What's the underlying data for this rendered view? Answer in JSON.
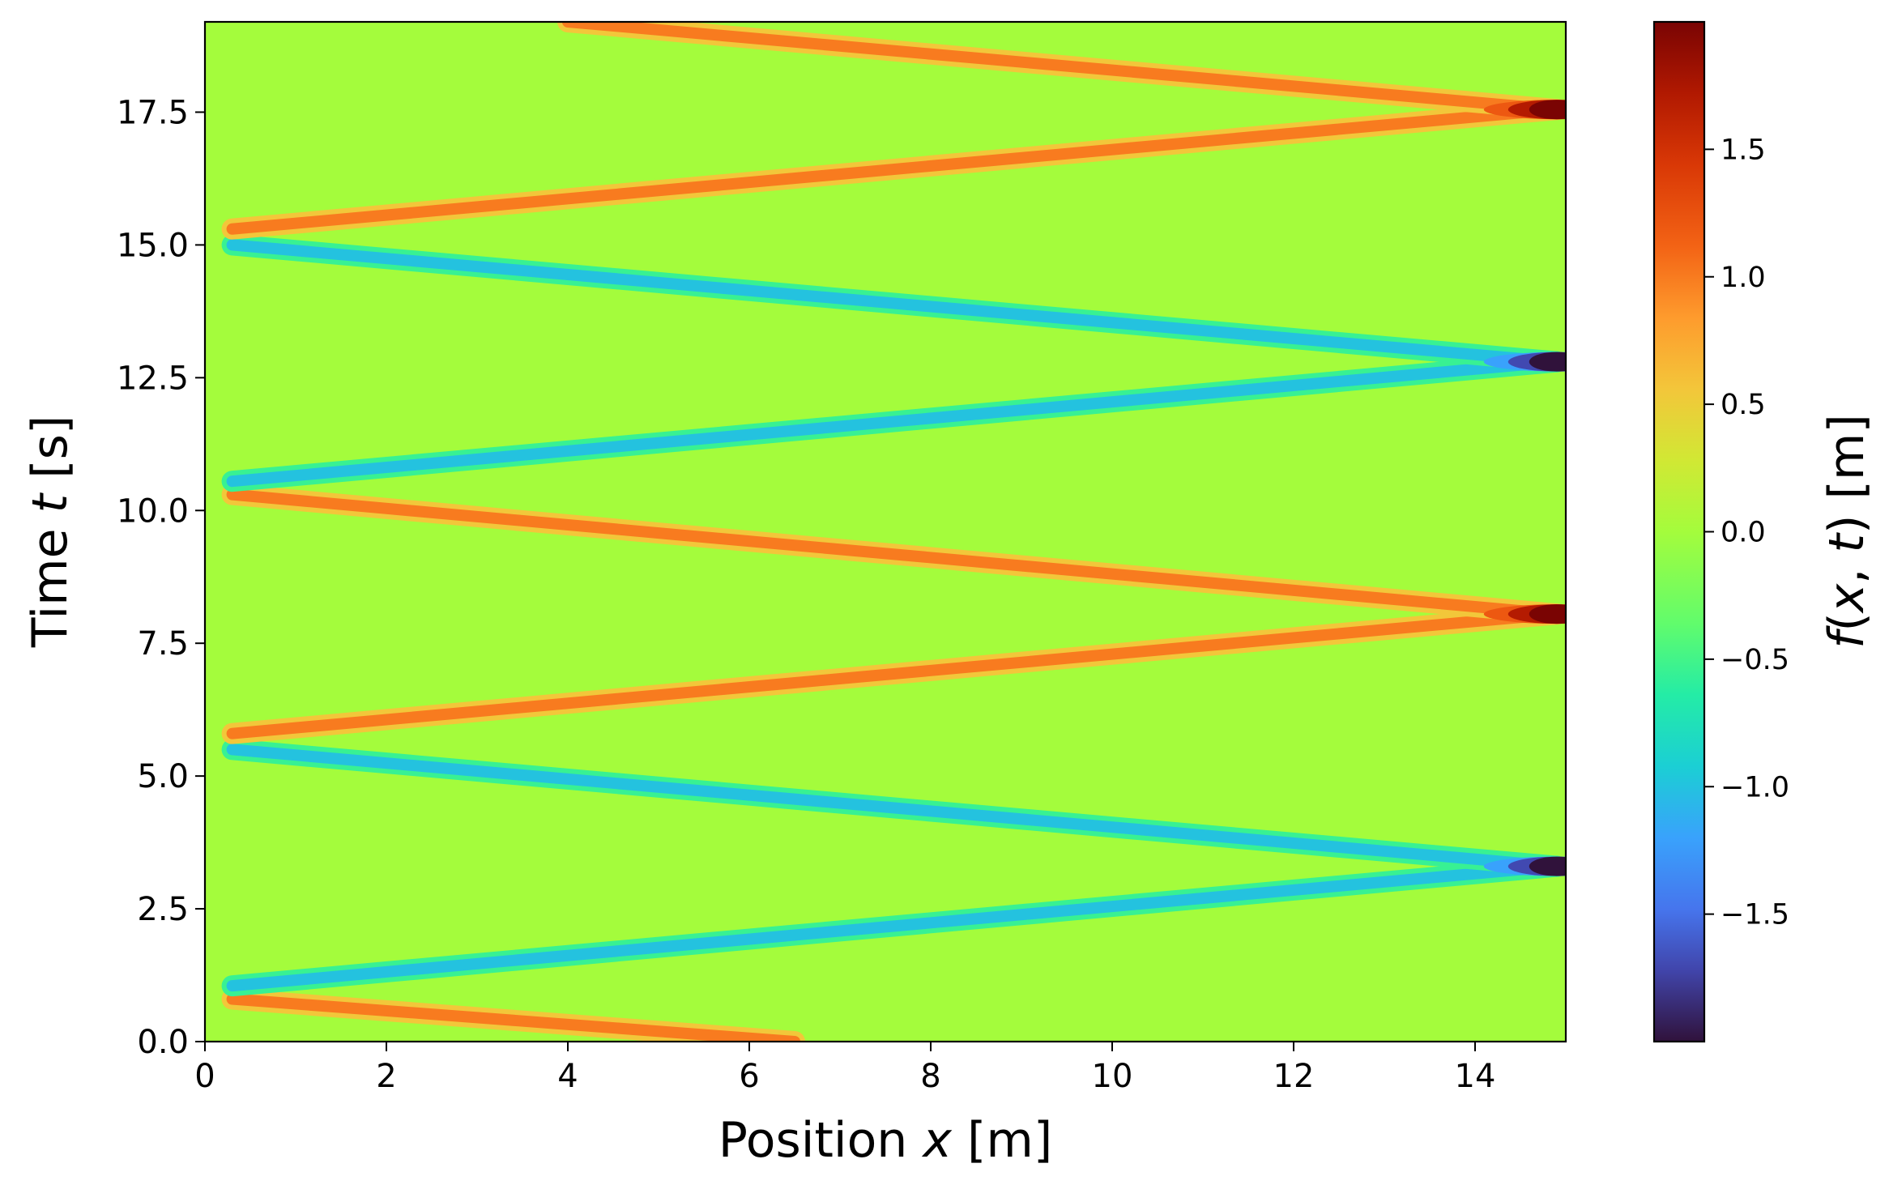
{
  "chart_data": {
    "type": "heatmap",
    "xlabel": {
      "prefix": "Position ",
      "var": "x",
      "suffix": " [m]"
    },
    "ylabel": {
      "prefix": "Time ",
      "var": "t",
      "suffix": " [s]"
    },
    "colorbar_label": {
      "var1": "f",
      "mid1": "(",
      "var2": "x",
      "mid2": ", ",
      "var3": "t",
      "suffix": ") [m]"
    },
    "xlim": [
      0,
      15
    ],
    "ylim": [
      0,
      19.2
    ],
    "clim": [
      -2,
      2
    ],
    "colormap": "turbo",
    "background_value": 0.0,
    "x_ticks": [
      0,
      2,
      4,
      6,
      8,
      10,
      12,
      14
    ],
    "x_tick_labels": [
      "0",
      "2",
      "4",
      "6",
      "8",
      "10",
      "12",
      "14"
    ],
    "y_ticks": [
      0,
      2.5,
      5,
      7.5,
      10,
      12.5,
      15,
      17.5
    ],
    "y_tick_labels": [
      "0.0",
      "2.5",
      "5.0",
      "7.5",
      "10.0",
      "12.5",
      "15.0",
      "17.5"
    ],
    "colorbar_ticks": [
      -1.5,
      -1.0,
      -0.5,
      0.0,
      0.5,
      1.0,
      1.5
    ],
    "colorbar_tick_labels": [
      "−1.5",
      "−1.0",
      "−0.5",
      "0.0",
      "0.5",
      "1.0",
      "1.5"
    ],
    "pulses": [
      {
        "amplitude": 1.0,
        "path": [
          [
            6.5,
            0.0
          ],
          [
            0.3,
            0.8
          ]
        ]
      },
      {
        "amplitude": -1.0,
        "path": [
          [
            0.3,
            1.05
          ],
          [
            14.9,
            3.3
          ]
        ]
      },
      {
        "amplitude": -1.0,
        "path": [
          [
            14.9,
            3.3
          ],
          [
            0.3,
            5.5
          ]
        ]
      },
      {
        "amplitude": 1.0,
        "path": [
          [
            0.3,
            5.8
          ],
          [
            14.9,
            8.05
          ]
        ]
      },
      {
        "amplitude": 1.0,
        "path": [
          [
            14.9,
            8.05
          ],
          [
            0.3,
            10.3
          ]
        ]
      },
      {
        "amplitude": -1.0,
        "path": [
          [
            0.3,
            10.55
          ],
          [
            14.9,
            12.8
          ]
        ]
      },
      {
        "amplitude": -1.0,
        "path": [
          [
            14.9,
            12.8
          ],
          [
            0.3,
            15.0
          ]
        ]
      },
      {
        "amplitude": 1.0,
        "path": [
          [
            0.3,
            15.3
          ],
          [
            14.9,
            17.55
          ]
        ]
      },
      {
        "amplitude": 1.0,
        "path": [
          [
            14.9,
            17.55
          ],
          [
            4.0,
            19.2
          ]
        ]
      }
    ],
    "reflection_peaks": [
      {
        "x": 14.9,
        "t": 3.3,
        "value": -2.0
      },
      {
        "x": 14.9,
        "t": 8.05,
        "value": 2.0
      },
      {
        "x": 14.9,
        "t": 12.8,
        "value": -2.0
      },
      {
        "x": 14.9,
        "t": 17.55,
        "value": 2.0
      }
    ]
  }
}
